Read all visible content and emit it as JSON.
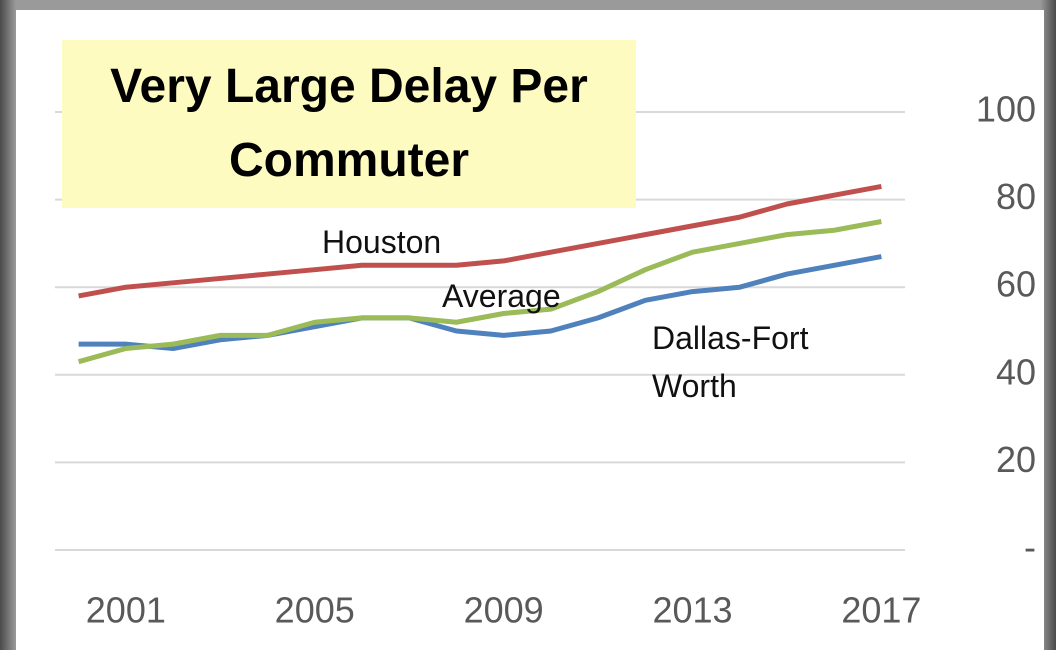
{
  "chart_data": {
    "type": "line",
    "title": "Very Large Delay Per Commuter",
    "x": [
      2000,
      2001,
      2002,
      2003,
      2004,
      2005,
      2006,
      2007,
      2008,
      2009,
      2010,
      2011,
      2012,
      2013,
      2014,
      2015,
      2016,
      2017
    ],
    "series": [
      {
        "name": "Houston",
        "color": "#c0504d",
        "values": [
          58,
          60,
          61,
          62,
          63,
          64,
          65,
          65,
          65,
          66,
          68,
          70,
          72,
          74,
          76,
          79,
          81,
          83
        ]
      },
      {
        "name": "Dallas-Fort Worth",
        "color": "#4f81bd",
        "values": [
          47,
          47,
          46,
          48,
          49,
          51,
          53,
          53,
          50,
          49,
          50,
          53,
          57,
          59,
          60,
          63,
          65,
          67
        ]
      },
      {
        "name": "Average",
        "color": "#9bbb59",
        "values": [
          43,
          46,
          47,
          49,
          49,
          52,
          53,
          53,
          52,
          54,
          55,
          59,
          64,
          68,
          70,
          72,
          73,
          75
        ]
      }
    ],
    "xlim": [
      1999.5,
      2017.5
    ],
    "xticks": [
      2001,
      2005,
      2009,
      2013,
      2017
    ],
    "ylim": [
      0,
      100
    ],
    "yticks": [
      {
        "value": 0,
        "label": "-"
      },
      20,
      40,
      60,
      80,
      100
    ],
    "grid": true
  }
}
